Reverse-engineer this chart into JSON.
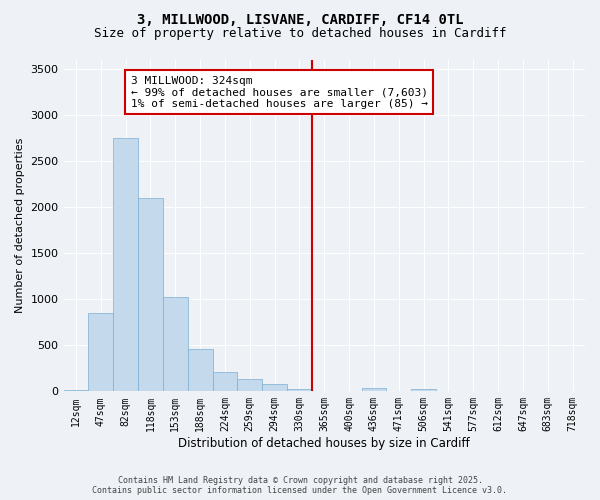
{
  "title_line1": "3, MILLWOOD, LISVANE, CARDIFF, CF14 0TL",
  "title_line2": "Size of property relative to detached houses in Cardiff",
  "xlabel": "Distribution of detached houses by size in Cardiff",
  "ylabel": "Number of detached properties",
  "categories": [
    "12sqm",
    "47sqm",
    "82sqm",
    "118sqm",
    "153sqm",
    "188sqm",
    "224sqm",
    "259sqm",
    "294sqm",
    "330sqm",
    "365sqm",
    "400sqm",
    "436sqm",
    "471sqm",
    "506sqm",
    "541sqm",
    "577sqm",
    "612sqm",
    "647sqm",
    "683sqm",
    "718sqm"
  ],
  "values": [
    10,
    850,
    2750,
    2100,
    1020,
    460,
    205,
    130,
    75,
    30,
    0,
    0,
    35,
    0,
    20,
    0,
    0,
    0,
    0,
    0,
    0
  ],
  "bar_color": "#c5d9ed",
  "bar_edge_color": "#7bafd4",
  "ylim": [
    0,
    3600
  ],
  "yticks": [
    0,
    500,
    1000,
    1500,
    2000,
    2500,
    3000,
    3500
  ],
  "vline_pos": 9.5,
  "annotation_text": "3 MILLWOOD: 324sqm\n← 99% of detached houses are smaller (7,603)\n1% of semi-detached houses are larger (85) →",
  "footer_line1": "Contains HM Land Registry data © Crown copyright and database right 2025.",
  "footer_line2": "Contains public sector information licensed under the Open Government Licence v3.0.",
  "bg_color": "#eef2f7",
  "grid_color": "#d8e4f0",
  "vline_color": "#cc0000",
  "title_fontsize": 10,
  "subtitle_fontsize": 9
}
